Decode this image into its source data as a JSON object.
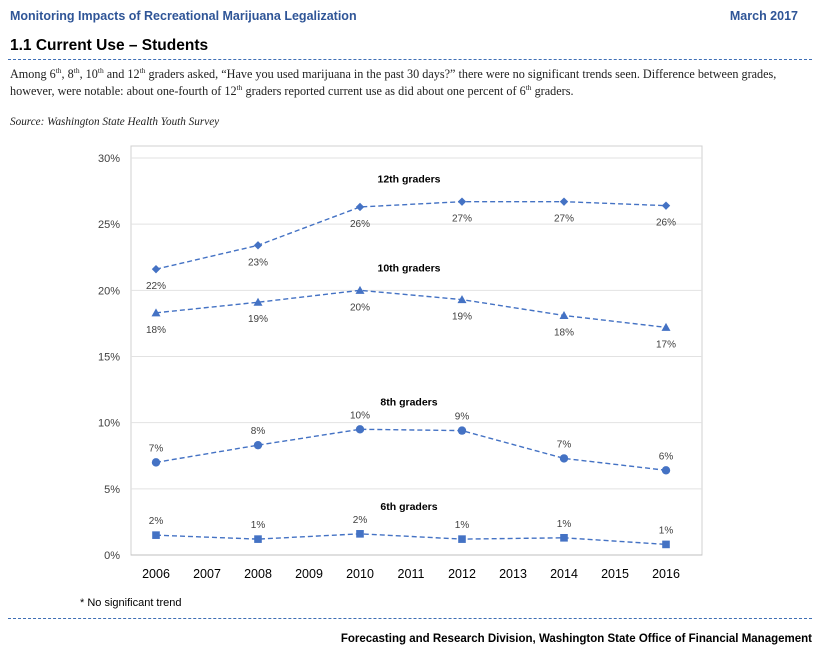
{
  "header": {
    "report_title": "Monitoring Impacts of Recreational Marijuana Legalization",
    "date": "March 2017"
  },
  "section": {
    "title": "1.1 Current Use – Students",
    "intro": {
      "p1": "Among 6",
      "s1": "th",
      "p2": ", 8",
      "s2": "th",
      "p3": ", 10",
      "s3": "th",
      "p4": " and 12",
      "s4": "th",
      "p5": " graders asked, “Have you used marijuana in the past 30 days?” there were no significant trends seen. Difference between grades, however, were notable: about one-fourth of 12",
      "s5": "th",
      "p6": " graders reported current use as did about one percent of 6",
      "s6": "th",
      "p7": " graders."
    },
    "source": "Source: Washington State Health Youth Survey"
  },
  "chart_data": {
    "type": "line",
    "title": "",
    "xlabel": "",
    "ylabel": "",
    "categories": [
      "2006",
      "2007",
      "2008",
      "2009",
      "2010",
      "2011",
      "2012",
      "2013",
      "2014",
      "2015",
      "2016"
    ],
    "x": [
      2006,
      2008,
      2010,
      2012,
      2014,
      2016
    ],
    "ylim": [
      0,
      30
    ],
    "yticks": [
      0,
      5,
      10,
      15,
      20,
      25,
      30
    ],
    "ytick_labels": [
      "0%",
      "5%",
      "10%",
      "15%",
      "20%",
      "25%",
      "30%"
    ],
    "grid": true,
    "line_color": "#4472c4",
    "series": [
      {
        "name": "12th graders",
        "marker": "diamond",
        "values": [
          21.6,
          23.4,
          26.3,
          26.7,
          26.7,
          26.4
        ],
        "labels": [
          "22%",
          "23%",
          "26%",
          "27%",
          "27%",
          "26%"
        ],
        "label_pos": "below"
      },
      {
        "name": "10th graders",
        "marker": "triangle",
        "values": [
          18.3,
          19.1,
          20.0,
          19.3,
          18.1,
          17.2
        ],
        "labels": [
          "18%",
          "19%",
          "20%",
          "19%",
          "18%",
          "17%"
        ],
        "label_pos": "below"
      },
      {
        "name": "8th graders",
        "marker": "circle",
        "values": [
          7.0,
          8.3,
          9.5,
          9.4,
          7.3,
          6.4
        ],
        "labels": [
          "7%",
          "8%",
          "10%",
          "9%",
          "7%",
          "6%"
        ],
        "label_pos": "above"
      },
      {
        "name": "6th graders",
        "marker": "square",
        "values": [
          1.5,
          1.2,
          1.6,
          1.2,
          1.3,
          0.8
        ],
        "labels": [
          "2%",
          "1%",
          "2%",
          "1%",
          "1%",
          "1%"
        ],
        "label_pos": "above"
      }
    ]
  },
  "footnote": "* No significant trend",
  "footer": "Forecasting and Research Division, Washington State Office of Financial Management"
}
